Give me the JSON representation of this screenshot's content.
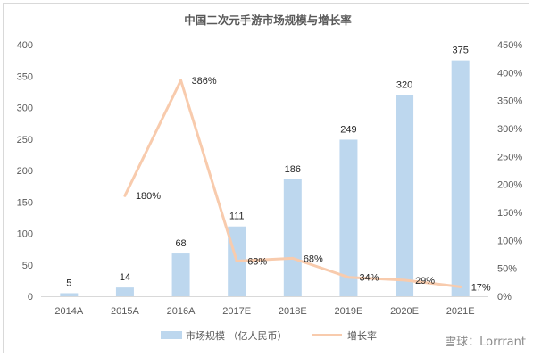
{
  "chart_data": {
    "type": "bar+line",
    "title": "中国二次元手游市场规模与增长率",
    "categories": [
      "2014A",
      "2015A",
      "2016A",
      "2017E",
      "2018E",
      "2019E",
      "2020E",
      "2021E"
    ],
    "bar_series": {
      "name": "市场规模 （亿人民币）",
      "values": [
        5,
        14,
        68,
        111,
        186,
        249,
        320,
        375
      ],
      "labels": [
        "5",
        "14",
        "68",
        "111",
        "186",
        "249",
        "320",
        "375"
      ],
      "color": "#bdd7ee"
    },
    "line_series": {
      "name": "增长率",
      "values": [
        null,
        180,
        386,
        63,
        68,
        34,
        29,
        17
      ],
      "labels": [
        null,
        "180%",
        "386%",
        "63%",
        "68%",
        "34%",
        "29%",
        "17%"
      ],
      "color": "#f8cbad"
    },
    "y_left": {
      "min": 0,
      "max": 400,
      "step": 50,
      "ticks": [
        "0",
        "50",
        "100",
        "150",
        "200",
        "250",
        "300",
        "350",
        "400"
      ]
    },
    "y_right": {
      "min": 0,
      "max": 450,
      "step": 50,
      "ticks": [
        "0%",
        "50%",
        "100%",
        "150%",
        "200%",
        "250%",
        "300%",
        "350%",
        "400%",
        "450%"
      ]
    },
    "grid": false,
    "legend": "bottom"
  },
  "watermark": "雪球：Lorrrant"
}
